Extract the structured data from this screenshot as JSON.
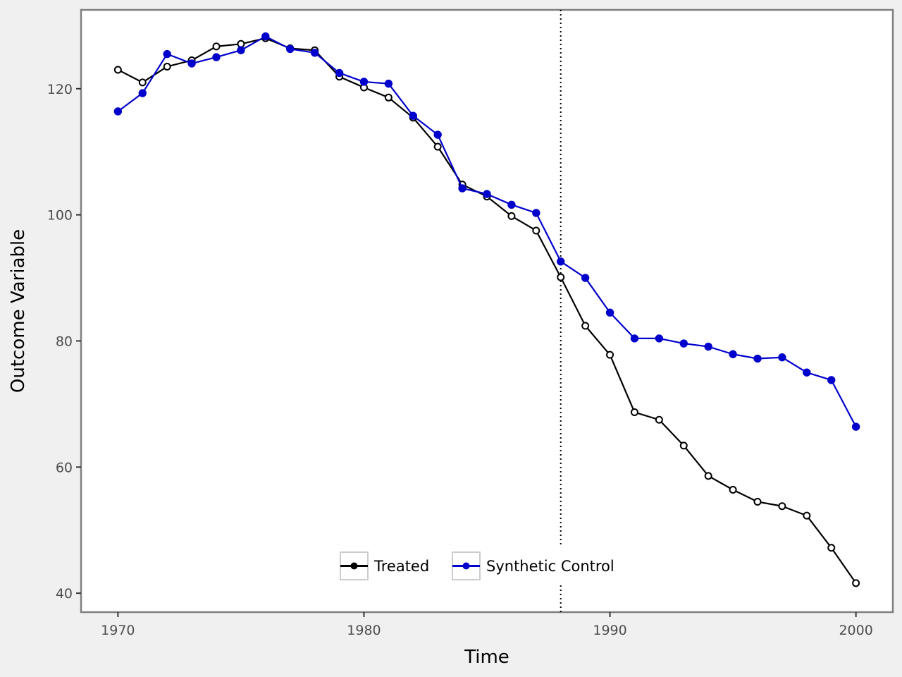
{
  "chart_data": {
    "type": "line",
    "title": "",
    "xlabel": "Time",
    "ylabel": "Outcome Variable",
    "xlim": [
      1968.5,
      2001.5
    ],
    "ylim": [
      37,
      132.5
    ],
    "xticks": [
      1970,
      1980,
      1990,
      2000
    ],
    "yticks": [
      40,
      60,
      80,
      100,
      120
    ],
    "xtick_labels": [
      "1970",
      "1980",
      "1990",
      "2000"
    ],
    "ytick_labels": [
      "40",
      "60",
      "80",
      "100",
      "120"
    ],
    "grid": false,
    "intervention_line": {
      "x": 1988,
      "style": "dotted",
      "color": "#000000"
    },
    "legend": {
      "position": "bottom-center"
    },
    "x": [
      1970,
      1971,
      1972,
      1973,
      1974,
      1975,
      1976,
      1977,
      1978,
      1979,
      1980,
      1981,
      1982,
      1983,
      1984,
      1985,
      1986,
      1987,
      1988,
      1989,
      1990,
      1991,
      1992,
      1993,
      1994,
      1995,
      1996,
      1997,
      1998,
      1999,
      2000
    ],
    "series": [
      {
        "name": "Treated",
        "color": "#000000",
        "marker": "open-circle",
        "values": [
          123.0,
          121.0,
          123.5,
          124.5,
          126.7,
          127.1,
          128.0,
          126.4,
          126.1,
          121.9,
          120.2,
          118.6,
          115.4,
          110.8,
          104.8,
          102.9,
          99.8,
          97.5,
          90.1,
          82.4,
          77.8,
          68.7,
          67.5,
          63.4,
          58.6,
          56.4,
          54.5,
          53.8,
          52.3,
          47.2,
          41.6
        ]
      },
      {
        "name": "Synthetic Control",
        "color": "#0000cc",
        "marker": "filled-circle",
        "values": [
          116.4,
          119.3,
          125.5,
          124.0,
          125.0,
          126.1,
          128.3,
          126.3,
          125.7,
          122.5,
          121.1,
          120.8,
          115.7,
          112.7,
          104.2,
          103.3,
          101.6,
          100.3,
          92.6,
          90.0,
          84.5,
          80.4,
          80.4,
          79.6,
          79.1,
          77.9,
          77.2,
          77.4,
          75.0,
          73.8,
          66.4
        ]
      }
    ]
  }
}
